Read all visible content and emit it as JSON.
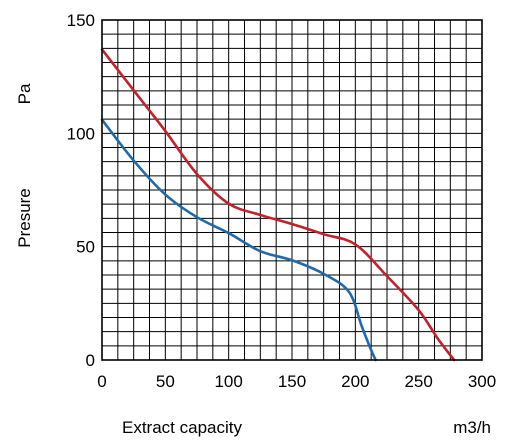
{
  "chart_data": {
    "type": "line",
    "xlabel": "Extract capacity",
    "xunit": "m3/h",
    "ylabel": "Presure",
    "yunit": "Pa",
    "xlim": [
      0,
      300
    ],
    "ylim": [
      0,
      150
    ],
    "grid": true,
    "x_ticks": [
      0,
      50,
      100,
      150,
      200,
      250,
      300
    ],
    "y_ticks": [
      0,
      50,
      100,
      150
    ],
    "series": [
      {
        "color": "#c0222e",
        "points": [
          [
            0,
            137
          ],
          [
            25,
            119
          ],
          [
            50,
            101
          ],
          [
            75,
            82
          ],
          [
            100,
            69
          ],
          [
            125,
            64
          ],
          [
            150,
            60
          ],
          [
            175,
            55.5
          ],
          [
            200,
            51
          ],
          [
            225,
            37
          ],
          [
            250,
            22
          ],
          [
            265,
            9.5
          ],
          [
            278,
            0
          ]
        ]
      },
      {
        "color": "#1f6aaa",
        "points": [
          [
            0,
            106
          ],
          [
            25,
            88
          ],
          [
            50,
            73
          ],
          [
            75,
            63
          ],
          [
            100,
            56
          ],
          [
            125,
            48
          ],
          [
            150,
            44
          ],
          [
            175,
            38
          ],
          [
            195,
            30
          ],
          [
            205,
            15
          ],
          [
            212,
            5
          ],
          [
            216,
            0
          ]
        ]
      }
    ]
  }
}
